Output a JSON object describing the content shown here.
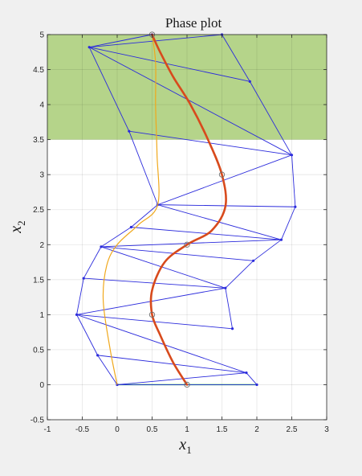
{
  "chart_data": {
    "type": "line",
    "title": "Phase plot",
    "xlabel": "x",
    "xlabel_sub": "1",
    "ylabel": "x",
    "ylabel_sub": "2",
    "xlim": [
      -1,
      3
    ],
    "ylim": [
      -0.5,
      5
    ],
    "xticks": [
      -1,
      -0.5,
      0,
      0.5,
      1,
      1.5,
      2,
      2.5,
      3
    ],
    "xtick_labels": [
      "-1",
      "-0.5",
      "0",
      "0.5",
      "1",
      "1.5",
      "2",
      "2.5",
      "3"
    ],
    "yticks": [
      -0.5,
      0,
      0.5,
      1,
      1.5,
      2,
      2.5,
      3,
      3.5,
      4,
      4.5,
      5
    ],
    "ytick_labels": [
      "-0.5",
      "0",
      "0.5",
      "1",
      "1.5",
      "2",
      "2.5",
      "3",
      "3.5",
      "4",
      "4.5",
      "5"
    ],
    "grid": true,
    "regions": [
      {
        "name": "target-region",
        "xrange": [
          -1,
          3
        ],
        "yrange": [
          3.5,
          5
        ],
        "color": "#b5d48a"
      }
    ],
    "series": [
      {
        "role": "initial-segment",
        "color": "#22cc22",
        "points": [
          [
            0,
            0
          ],
          [
            2,
            0
          ]
        ]
      },
      {
        "role": "reachable-set-mesh",
        "color": "#2b2bdc",
        "nodes": [
          [
            0,
            0
          ],
          [
            2,
            0
          ],
          [
            -0.28,
            0.42
          ],
          [
            1.85,
            0.17
          ],
          [
            -0.58,
            1.0
          ],
          [
            1.65,
            0.8
          ],
          [
            -0.48,
            1.52
          ],
          [
            1.55,
            1.38
          ],
          [
            -0.23,
            1.97
          ],
          [
            1.95,
            1.77
          ],
          [
            0.2,
            2.25
          ],
          [
            2.35,
            2.07
          ],
          [
            0.58,
            2.57
          ],
          [
            2.55,
            2.54
          ],
          [
            0.17,
            3.62
          ],
          [
            2.5,
            3.28
          ],
          [
            -0.4,
            4.82
          ],
          [
            1.9,
            4.33
          ],
          [
            1.5,
            5.0
          ],
          [
            0.5,
            5.0
          ]
        ],
        "edges": [
          [
            0,
            1
          ],
          [
            0,
            2
          ],
          [
            0,
            3
          ],
          [
            1,
            3
          ],
          [
            2,
            4
          ],
          [
            2,
            3
          ],
          [
            3,
            4
          ],
          [
            4,
            5
          ],
          [
            4,
            7
          ],
          [
            5,
            7
          ],
          [
            4,
            6
          ],
          [
            6,
            7
          ],
          [
            6,
            8
          ],
          [
            7,
            8
          ],
          [
            7,
            9
          ],
          [
            8,
            9
          ],
          [
            8,
            11
          ],
          [
            9,
            11
          ],
          [
            8,
            10
          ],
          [
            10,
            11
          ],
          [
            10,
            12
          ],
          [
            11,
            12
          ],
          [
            11,
            13
          ],
          [
            12,
            13
          ],
          [
            12,
            15
          ],
          [
            13,
            15
          ],
          [
            12,
            14
          ],
          [
            14,
            15
          ],
          [
            14,
            16
          ],
          [
            15,
            16
          ],
          [
            15,
            17
          ],
          [
            16,
            17
          ],
          [
            16,
            19
          ],
          [
            16,
            18
          ],
          [
            17,
            18
          ]
        ]
      },
      {
        "role": "boundary-trajectory",
        "color": "#f0a81c",
        "points": [
          [
            0,
            0
          ],
          [
            -0.1,
            0.5
          ],
          [
            -0.2,
            1.2
          ],
          [
            -0.15,
            1.7
          ],
          [
            0,
            2.0
          ],
          [
            0.3,
            2.28
          ],
          [
            0.58,
            2.57
          ],
          [
            0.57,
            3.3
          ],
          [
            0.55,
            4.0
          ],
          [
            0.55,
            4.6
          ],
          [
            0.5,
            5.0
          ]
        ]
      },
      {
        "role": "optimal-trajectory",
        "color": "#d84a1c",
        "points": [
          [
            1.0,
            0.0
          ],
          [
            0.8,
            0.32
          ],
          [
            0.62,
            0.7
          ],
          [
            0.5,
            1.0
          ],
          [
            0.5,
            1.35
          ],
          [
            0.68,
            1.75
          ],
          [
            1.0,
            2.0
          ],
          [
            1.35,
            2.2
          ],
          [
            1.55,
            2.55
          ],
          [
            1.5,
            3.0
          ],
          [
            1.3,
            3.5
          ],
          [
            1.05,
            4.0
          ],
          [
            0.8,
            4.4
          ],
          [
            0.6,
            4.78
          ],
          [
            0.5,
            5.0
          ]
        ]
      }
    ],
    "markers": [
      {
        "role": "waypoint",
        "points": [
          [
            1.0,
            0.0
          ],
          [
            0.5,
            1.0
          ],
          [
            1.0,
            2.0
          ],
          [
            1.5,
            3.0
          ],
          [
            0.5,
            5.0
          ]
        ]
      }
    ]
  }
}
